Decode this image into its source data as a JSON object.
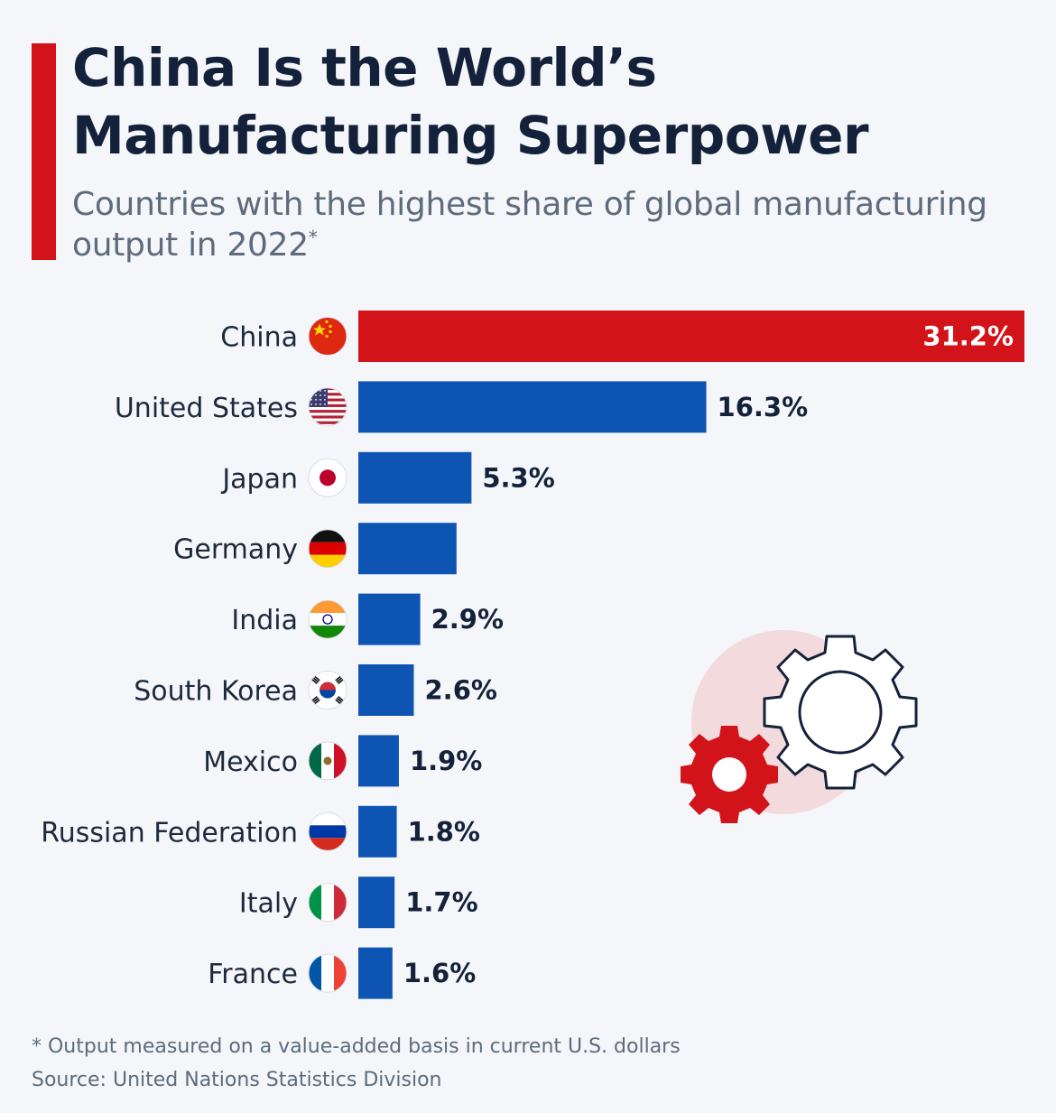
{
  "header": {
    "title_line1": "China Is the World’s",
    "title_line2": "Manufacturing Superpower",
    "subtitle": "Countries with the highest share of global manufacturing output in 2022",
    "subtitle_mark": "*"
  },
  "footer": {
    "footnote": "* Output measured on a value-added basis in current U.S. dollars",
    "source": "Source: United Nations Statistics Division"
  },
  "colors": {
    "accent": "#d2131a",
    "bar": "#0e55b3",
    "title": "#14213a",
    "muted": "#5d6b7c"
  },
  "chart_data": {
    "type": "bar",
    "orientation": "horizontal",
    "categories": [
      "China",
      "United States",
      "Japan",
      "Germany",
      "India",
      "South Korea",
      "Mexico",
      "Russian Federation",
      "Italy",
      "France"
    ],
    "values": [
      31.2,
      16.3,
      5.3,
      4.6,
      2.9,
      2.6,
      1.9,
      1.8,
      1.7,
      1.6
    ],
    "value_labels": [
      "31.2%",
      "16.3%",
      "5.3%",
      "",
      "2.9%",
      "2.6%",
      "1.9%",
      "1.8%",
      "1.7%",
      "1.6%"
    ],
    "flags": [
      "china-flag-icon",
      "usa-flag-icon",
      "japan-flag-icon",
      "germany-flag-icon",
      "india-flag-icon",
      "south-korea-flag-icon",
      "mexico-flag-icon",
      "russia-flag-icon",
      "italy-flag-icon",
      "france-flag-icon"
    ],
    "highlight_index": 0,
    "xlim": [
      0,
      31.2
    ],
    "unit": "%",
    "grid": false,
    "legend": "none"
  }
}
